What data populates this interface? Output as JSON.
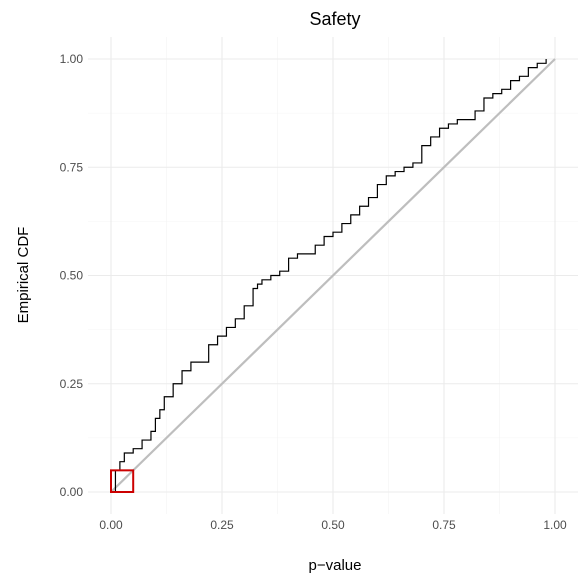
{
  "chart_data": {
    "type": "line",
    "title": "Safety",
    "xlabel": "p−value",
    "ylabel": "Empirical CDF",
    "xlim": [
      0,
      1
    ],
    "ylim": [
      0,
      1
    ],
    "x_ticks": [
      0,
      0.25,
      0.5,
      0.75,
      1
    ],
    "x_tick_labels": [
      "0.00",
      "0.25",
      "0.50",
      "0.75",
      "1.00"
    ],
    "y_ticks": [
      0,
      0.25,
      0.5,
      0.75,
      1
    ],
    "y_tick_labels": [
      "0.00",
      "0.25",
      "0.50",
      "0.75",
      "1.00"
    ],
    "grid": true,
    "legend": "none",
    "series": [
      {
        "color": "#000000",
        "x": [
          0.0,
          0.01,
          0.02,
          0.03,
          0.05,
          0.07,
          0.09,
          0.1,
          0.11,
          0.12,
          0.14,
          0.16,
          0.18,
          0.2,
          0.22,
          0.24,
          0.26,
          0.28,
          0.3,
          0.32,
          0.33,
          0.34,
          0.36,
          0.38,
          0.4,
          0.42,
          0.44,
          0.46,
          0.48,
          0.5,
          0.52,
          0.54,
          0.56,
          0.58,
          0.6,
          0.62,
          0.64,
          0.66,
          0.68,
          0.7,
          0.72,
          0.74,
          0.76,
          0.78,
          0.8,
          0.82,
          0.84,
          0.86,
          0.88,
          0.9,
          0.92,
          0.94,
          0.96,
          0.98
        ],
        "y": [
          0.0,
          0.05,
          0.07,
          0.09,
          0.1,
          0.12,
          0.14,
          0.17,
          0.19,
          0.22,
          0.25,
          0.28,
          0.3,
          0.3,
          0.34,
          0.36,
          0.38,
          0.4,
          0.43,
          0.47,
          0.48,
          0.49,
          0.5,
          0.51,
          0.54,
          0.55,
          0.55,
          0.57,
          0.59,
          0.6,
          0.62,
          0.64,
          0.66,
          0.68,
          0.71,
          0.73,
          0.74,
          0.75,
          0.76,
          0.8,
          0.82,
          0.84,
          0.85,
          0.86,
          0.86,
          0.88,
          0.91,
          0.92,
          0.93,
          0.95,
          0.96,
          0.98,
          0.99,
          1.0
        ]
      },
      {
        "color": "#bebebe",
        "x": [
          0,
          1
        ],
        "y": [
          0,
          1
        ]
      }
    ],
    "annotations": [
      {
        "type": "rectangle",
        "color": "#cc0000",
        "x": [
          0,
          0.05
        ],
        "y": [
          0,
          0.05
        ]
      }
    ]
  }
}
